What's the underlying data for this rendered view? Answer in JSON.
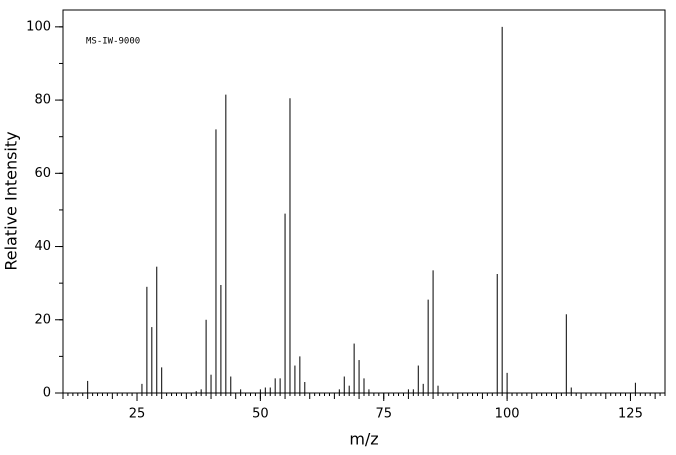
{
  "chart_data": {
    "type": "stem",
    "annotation": "MS-IW-9000",
    "x_label": "m/z",
    "y_label": "Relative Intensity",
    "color": "#000000",
    "x": [
      15,
      26,
      27,
      28,
      29,
      30,
      37,
      38,
      39,
      40,
      41,
      42,
      43,
      44,
      46,
      50,
      51,
      52,
      53,
      54,
      55,
      56,
      57,
      58,
      59,
      66,
      67,
      68,
      69,
      70,
      71,
      72,
      80,
      81,
      82,
      83,
      84,
      85,
      86,
      98,
      99,
      100,
      112,
      113,
      126
    ],
    "values": [
      3.3,
      2.5,
      29,
      18,
      34.5,
      7,
      0.5,
      1,
      20,
      5,
      72,
      29.5,
      81.5,
      4.5,
      1,
      1,
      1.5,
      1.5,
      4,
      4,
      49,
      80.5,
      7.5,
      10,
      3,
      1,
      4.5,
      2,
      13.5,
      9,
      4,
      1,
      1,
      1,
      7.5,
      2.5,
      25.5,
      33.5,
      2,
      32.5,
      100,
      5.5,
      21.5,
      1.5,
      2.8
    ],
    "xlim": [
      10,
      132
    ],
    "xticks": [
      25,
      50,
      75,
      100,
      125
    ],
    "ylim": [
      0,
      104.6
    ],
    "yticks": [
      0,
      20,
      40,
      60,
      80,
      100
    ]
  }
}
